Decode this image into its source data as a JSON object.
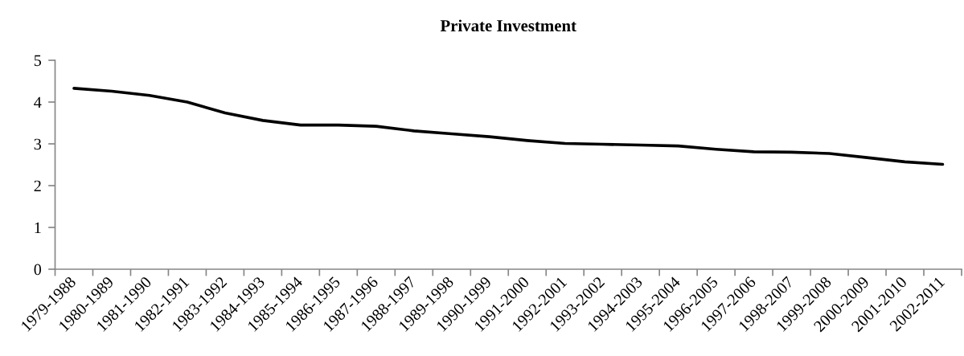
{
  "chart_data": {
    "type": "line",
    "title": "Private Investment",
    "categories": [
      "1979-1988",
      "1980-1989",
      "1981-1990",
      "1982-1991",
      "1983-1992",
      "1984-1993",
      "1985-1994",
      "1986-1995",
      "1987-1996",
      "1988-1997",
      "1989-1998",
      "1990-1999",
      "1991-2000",
      "1992-2001",
      "1993-2002",
      "1994-2003",
      "1995-2004",
      "1996-2005",
      "1997-2006",
      "1998-2007",
      "1999-2008",
      "2000-2009",
      "2001-2010",
      "2002-2011"
    ],
    "series": [
      {
        "color": "#000000",
        "values": [
          4.33,
          4.26,
          4.16,
          4.0,
          3.74,
          3.56,
          3.45,
          3.45,
          3.42,
          3.31,
          3.24,
          3.17,
          3.08,
          3.01,
          2.99,
          2.97,
          2.95,
          2.87,
          2.81,
          2.8,
          2.77,
          2.67,
          2.57,
          2.51
        ]
      }
    ],
    "ylim": [
      0,
      5
    ],
    "yticks": [
      0,
      1,
      2,
      3,
      4,
      5
    ],
    "grid": false,
    "marker": "none",
    "line_style": "solid"
  }
}
